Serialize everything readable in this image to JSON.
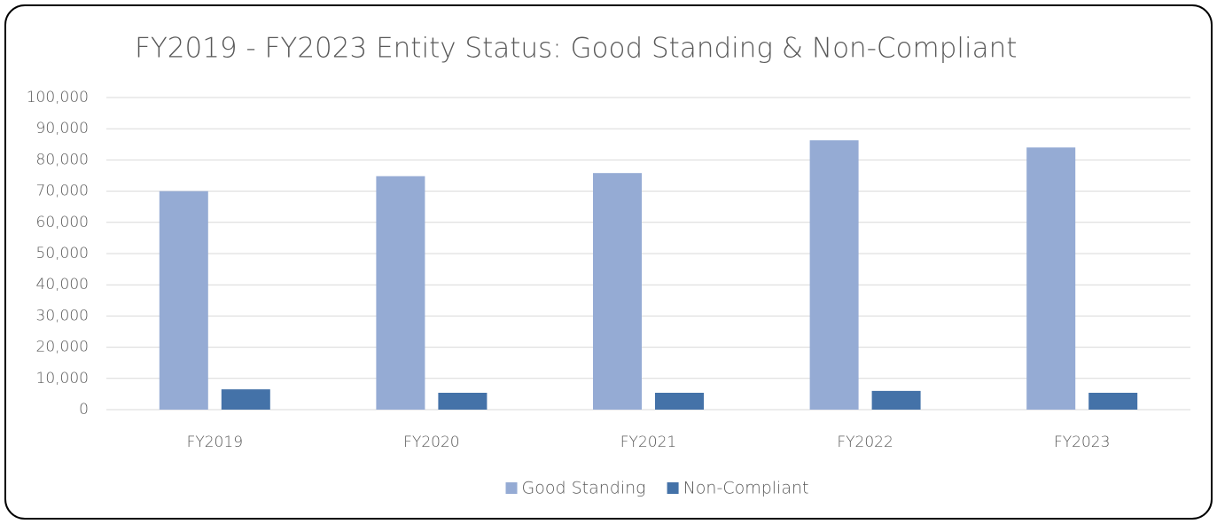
{
  "chart_data": {
    "type": "bar",
    "title": "FY2019 - FY2023 Entity Status: Good Standing & Non-Compliant",
    "categories": [
      "FY2019",
      "FY2020",
      "FY2021",
      "FY2022",
      "FY2023"
    ],
    "series": [
      {
        "name": "Good Standing",
        "color": "#95abd4",
        "values": [
          70000,
          74800,
          75800,
          86300,
          84000
        ]
      },
      {
        "name": "Non-Compliant",
        "color": "#4472a8",
        "values": [
          6500,
          5400,
          5400,
          6000,
          5400
        ]
      }
    ],
    "ylim": [
      0,
      100000
    ],
    "yticks": [
      0,
      {
        "value": 10000,
        "label": "10,000"
      },
      {
        "value": 20000,
        "label": "20,000"
      },
      {
        "value": 30000,
        "label": "30,000"
      },
      {
        "value": 40000,
        "label": "40,000"
      },
      {
        "value": 50000,
        "label": "50,000"
      },
      {
        "value": 60000,
        "label": "60,000"
      },
      {
        "value": 70000,
        "label": "70,000"
      },
      {
        "value": 80000,
        "label": "80,000"
      },
      {
        "value": 90000,
        "label": "90,000"
      },
      {
        "value": 100000,
        "label": "100,000"
      }
    ],
    "grid": true,
    "legend": "bottom"
  }
}
